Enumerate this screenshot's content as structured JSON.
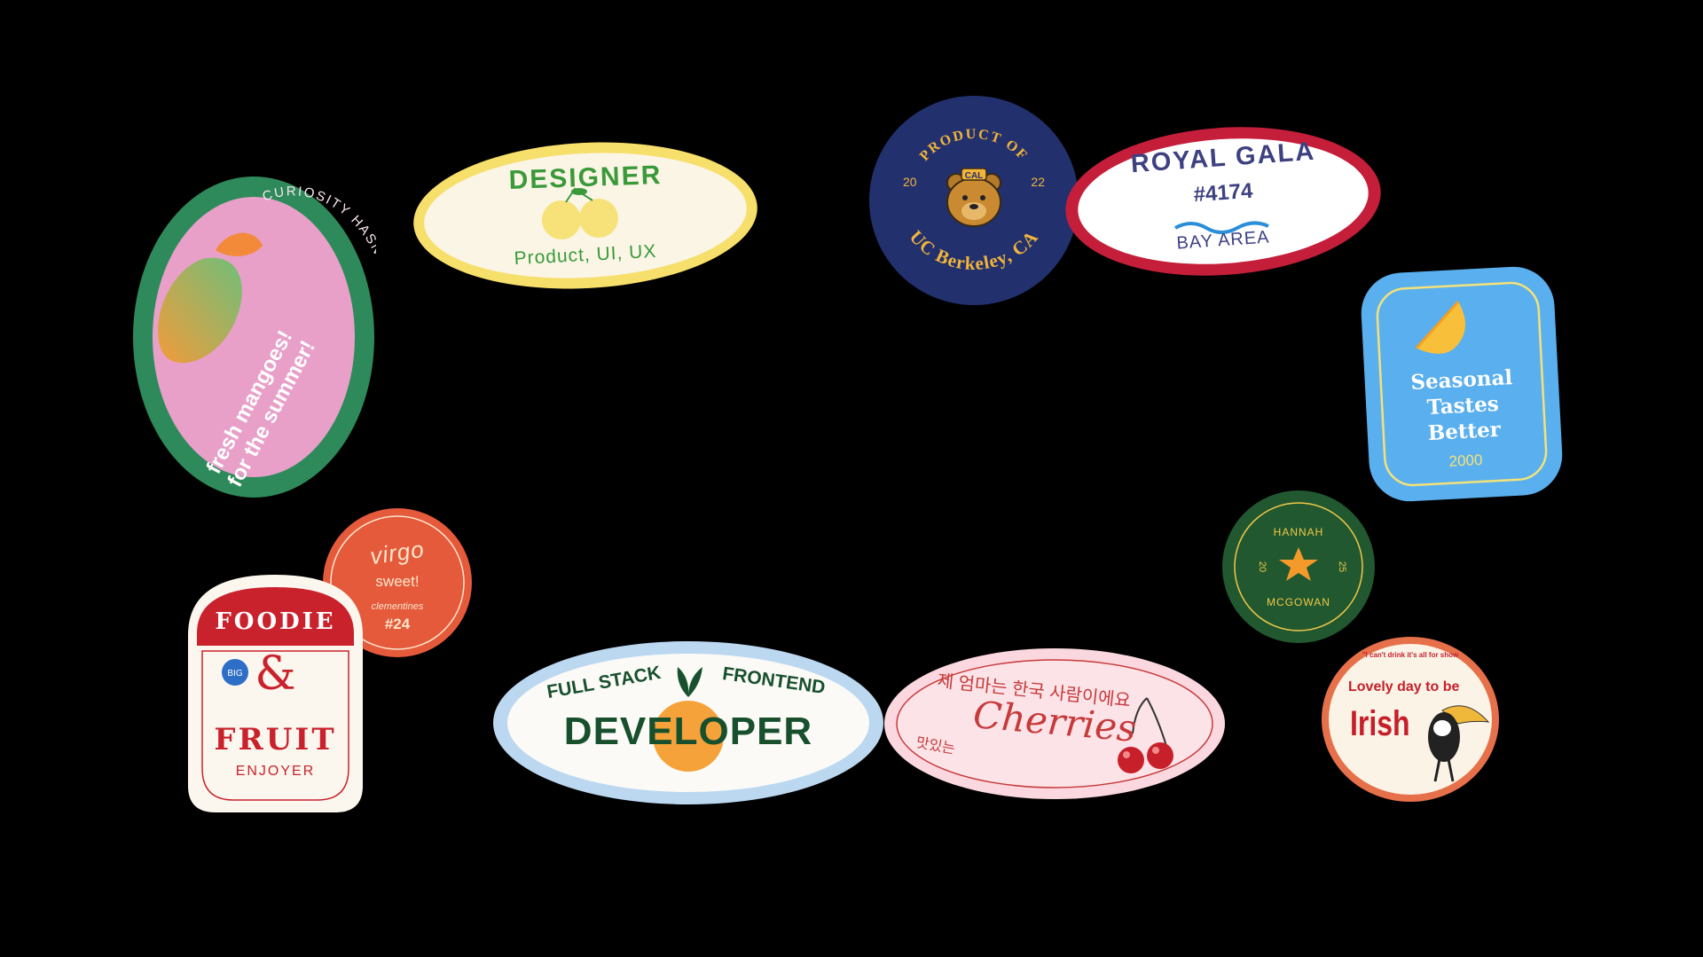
{
  "mango": {
    "arc_text": "CURIOSITY HASN'T KILLED ME YET",
    "line1": "fresh mangoes!",
    "line2": "for the summer!",
    "colors": {
      "border": "#2e8a5a",
      "fill": "#e8a0c9"
    }
  },
  "designer": {
    "title": "DESIGNER",
    "subtitle": "Product, UI, UX",
    "colors": {
      "border": "#f7df6b",
      "fill": "#fbf5e6",
      "text": "#3a9a3a"
    }
  },
  "berkeley": {
    "top_arc": "PRODUCT OF",
    "bottom_arc": "UC Berkeley, CA",
    "year_left": "20",
    "year_right": "22",
    "bear_label": "CAL",
    "colors": {
      "fill": "#22306e",
      "text": "#f2b53a"
    }
  },
  "gala": {
    "title": "ROYAL GALA",
    "number": "#4174",
    "area": "BAY AREA",
    "colors": {
      "border": "#c41e3a",
      "text": "#3d4180",
      "wave": "#2c8ed8"
    }
  },
  "seasonal": {
    "line1": "Seasonal",
    "line2": "Tastes",
    "line3": "Better",
    "year": "2000",
    "colors": {
      "fill": "#5aafee",
      "line": "#f3e27a"
    }
  },
  "hannah": {
    "first": "HANNAH",
    "last": "MCGOWAN",
    "left": "20",
    "right": "25",
    "colors": {
      "fill": "#22582f",
      "text": "#f0c84a",
      "star": "#f39a2a"
    }
  },
  "irish": {
    "tiny": "\"I can't drink it's all for show",
    "line1": "Lovely day to be",
    "line2": "Irish",
    "colors": {
      "border": "#e6704a",
      "fill": "#fbf3e6",
      "text": "#c61f2a"
    }
  },
  "cherries": {
    "korean": "제 엄마는 한국 사람이에요",
    "side": "맛있는",
    "title": "Cherries",
    "colors": {
      "border": "#fbd8df",
      "fill": "#fbe3e8",
      "text": "#c73a3a"
    }
  },
  "developer": {
    "left": "FULL STACK",
    "right": "FRONTEND",
    "title": "DEVELOPER",
    "colors": {
      "border": "#bcd8f0",
      "fill": "#fbfaf6",
      "text": "#18502e",
      "orange": "#f5a23a"
    }
  },
  "virgo": {
    "line1": "virgo",
    "line2": "sweet!",
    "line3": "clementines",
    "number": "#24",
    "colors": {
      "fill": "#e55a3b",
      "text": "#fbe6cc"
    }
  },
  "foodie": {
    "title": "FOODIE",
    "badge": "BIG",
    "amp": "&",
    "fruit": "FRUIT",
    "enjoyer": "ENJOYER",
    "colors": {
      "top": "#c9222d",
      "fill": "#fcf7ee",
      "badge": "#2d6fc7"
    }
  }
}
